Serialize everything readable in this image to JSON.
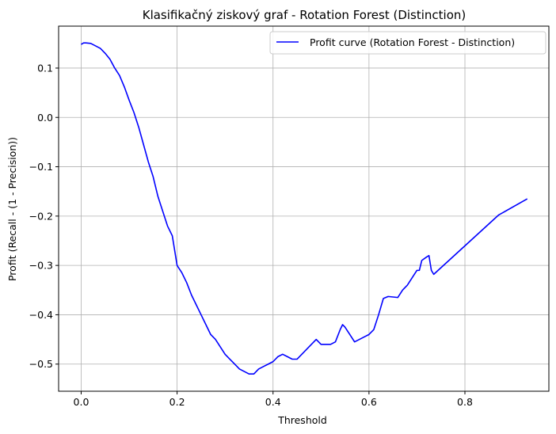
{
  "chart_data": {
    "type": "line",
    "title": "Klasifikačný ziskový graf - Rotation Forest (Distinction)",
    "xlabel": "Threshold",
    "ylabel": "Profit (Recall - (1 - Precision))",
    "xlim": [
      -0.047,
      0.975
    ],
    "ylim": [
      -0.555,
      0.185
    ],
    "xticks": [
      0.0,
      0.2,
      0.4,
      0.6,
      0.8
    ],
    "xtick_labels": [
      "0.0",
      "0.2",
      "0.4",
      "0.6",
      "0.8"
    ],
    "yticks": [
      0.1,
      0.0,
      -0.1,
      -0.2,
      -0.3,
      -0.4,
      -0.5
    ],
    "ytick_labels": [
      "0.1",
      "0.0",
      "−0.1",
      "−0.2",
      "−0.3",
      "−0.4",
      "−0.5"
    ],
    "grid": true,
    "legend_position": "top-right",
    "series": [
      {
        "name": "Profit curve (Rotation Forest - Distinction)",
        "color": "#0000ff",
        "x": [
          0.0,
          0.005,
          0.01,
          0.02,
          0.03,
          0.04,
          0.05,
          0.06,
          0.07,
          0.08,
          0.09,
          0.1,
          0.11,
          0.12,
          0.13,
          0.14,
          0.15,
          0.16,
          0.17,
          0.18,
          0.19,
          0.2,
          0.21,
          0.22,
          0.23,
          0.24,
          0.25,
          0.26,
          0.27,
          0.28,
          0.29,
          0.3,
          0.31,
          0.32,
          0.33,
          0.34,
          0.35,
          0.36,
          0.37,
          0.38,
          0.39,
          0.4,
          0.41,
          0.42,
          0.43,
          0.44,
          0.45,
          0.46,
          0.47,
          0.48,
          0.49,
          0.5,
          0.51,
          0.52,
          0.53,
          0.54,
          0.545,
          0.55,
          0.56,
          0.57,
          0.58,
          0.59,
          0.6,
          0.61,
          0.62,
          0.63,
          0.64,
          0.65,
          0.66,
          0.67,
          0.68,
          0.69,
          0.7,
          0.705,
          0.71,
          0.72,
          0.725,
          0.73,
          0.735,
          0.87,
          0.93
        ],
        "y": [
          0.148,
          0.151,
          0.151,
          0.15,
          0.145,
          0.14,
          0.13,
          0.118,
          0.1,
          0.085,
          0.062,
          0.035,
          0.01,
          -0.02,
          -0.055,
          -0.09,
          -0.12,
          -0.16,
          -0.19,
          -0.22,
          -0.24,
          -0.3,
          -0.315,
          -0.335,
          -0.36,
          -0.38,
          -0.4,
          -0.42,
          -0.44,
          -0.45,
          -0.465,
          -0.48,
          -0.49,
          -0.5,
          -0.51,
          -0.515,
          -0.52,
          -0.52,
          -0.51,
          -0.505,
          -0.5,
          -0.495,
          -0.485,
          -0.48,
          -0.485,
          -0.49,
          -0.49,
          -0.48,
          -0.47,
          -0.46,
          -0.45,
          -0.46,
          -0.46,
          -0.46,
          -0.455,
          -0.43,
          -0.42,
          -0.425,
          -0.44,
          -0.455,
          -0.45,
          -0.445,
          -0.44,
          -0.43,
          -0.4,
          -0.367,
          -0.363,
          -0.364,
          -0.365,
          -0.35,
          -0.34,
          -0.325,
          -0.31,
          -0.31,
          -0.29,
          -0.283,
          -0.28,
          -0.31,
          -0.318,
          -0.198,
          -0.165
        ]
      }
    ]
  }
}
